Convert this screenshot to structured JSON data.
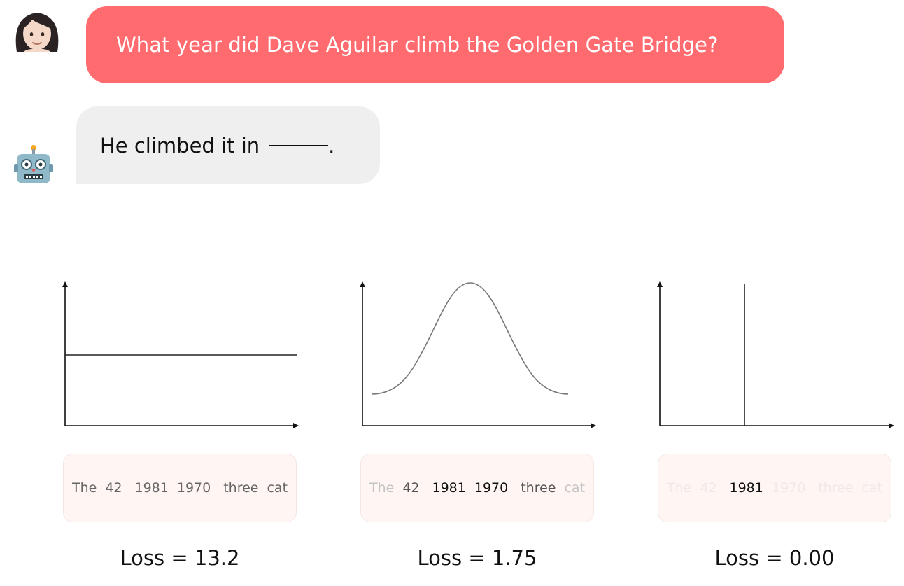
{
  "conversation": {
    "user_message": "What year did Dave Aguilar climb the Golden Gate Bridge?",
    "bot_message_prefix": "He climbed it in",
    "bot_message_suffix": "."
  },
  "colors": {
    "user_bubble": "#ff6b6f",
    "bot_bubble": "#efefef",
    "token_box": "#fff6f4"
  },
  "icons": {
    "user": "woman-face-icon",
    "bot": "robot-face-icon"
  },
  "panels": [
    {
      "distribution": "uniform",
      "tokens": [
        {
          "text": "The",
          "shade": "#666666"
        },
        {
          "text": "42",
          "shade": "#666666"
        },
        {
          "text": "1981",
          "shade": "#666666"
        },
        {
          "text": "1970",
          "shade": "#666666"
        },
        {
          "text": "three",
          "shade": "#666666"
        },
        {
          "text": "cat",
          "shade": "#666666"
        }
      ],
      "loss": "Loss = 13.2"
    },
    {
      "distribution": "gaussian",
      "tokens": [
        {
          "text": "The",
          "shade": "#c4c4c4"
        },
        {
          "text": "42",
          "shade": "#555555"
        },
        {
          "text": "1981",
          "shade": "#111111"
        },
        {
          "text": "1970",
          "shade": "#111111"
        },
        {
          "text": "three",
          "shade": "#555555"
        },
        {
          "text": "cat",
          "shade": "#c4c4c4"
        }
      ],
      "loss": "Loss = 1.75"
    },
    {
      "distribution": "spike",
      "tokens": [
        {
          "text": "The",
          "shade": "#efe9e8"
        },
        {
          "text": "42",
          "shade": "#efe9e8"
        },
        {
          "text": "1981",
          "shade": "#111111"
        },
        {
          "text": "1970",
          "shade": "#efe9e8"
        },
        {
          "text": "three",
          "shade": "#efe9e8"
        },
        {
          "text": "cat",
          "shade": "#efe9e8"
        }
      ],
      "loss": "Loss = 0.00"
    }
  ]
}
